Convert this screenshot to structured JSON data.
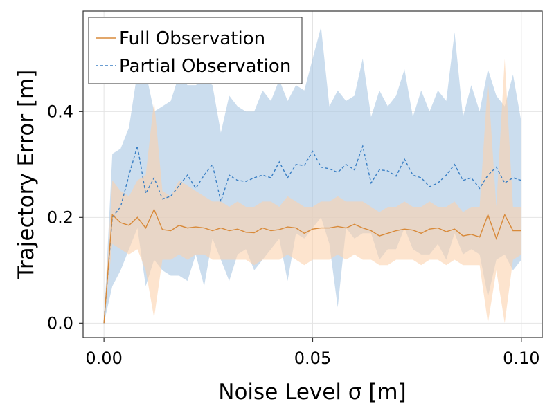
{
  "chart_data": {
    "type": "line",
    "xlabel": "Noise Level σ [m]",
    "ylabel": "Trajectory Error [m]",
    "xlim": [
      -0.005,
      0.105
    ],
    "ylim": [
      -0.027,
      0.59
    ],
    "grid": true,
    "legend_position": "top-left",
    "x_ticks": [
      0.0,
      0.05,
      0.1
    ],
    "x_tick_labels": [
      "0.00",
      "0.05",
      "0.10"
    ],
    "y_ticks": [
      0.0,
      0.2,
      0.4
    ],
    "y_tick_labels": [
      "0.0",
      "0.2",
      "0.4"
    ],
    "x": [
      0.0,
      0.002,
      0.004,
      0.006,
      0.008,
      0.01,
      0.012,
      0.014,
      0.016,
      0.018,
      0.02,
      0.022,
      0.024,
      0.026,
      0.028,
      0.03,
      0.032,
      0.034,
      0.036,
      0.038,
      0.04,
      0.042,
      0.044,
      0.046,
      0.048,
      0.05,
      0.052,
      0.054,
      0.056,
      0.058,
      0.06,
      0.062,
      0.064,
      0.066,
      0.068,
      0.07,
      0.072,
      0.074,
      0.076,
      0.078,
      0.08,
      0.082,
      0.084,
      0.086,
      0.088,
      0.09,
      0.092,
      0.094,
      0.096,
      0.098,
      0.1
    ],
    "series": [
      {
        "name": "Partial Observation",
        "color": "#3a7fc4",
        "band_color": "#a8c6e2",
        "line_style": "dashed",
        "mean": [
          0.0,
          0.2,
          0.22,
          0.28,
          0.335,
          0.245,
          0.275,
          0.235,
          0.24,
          0.26,
          0.28,
          0.255,
          0.28,
          0.3,
          0.23,
          0.28,
          0.27,
          0.268,
          0.275,
          0.28,
          0.275,
          0.305,
          0.275,
          0.3,
          0.298,
          0.325,
          0.295,
          0.292,
          0.285,
          0.3,
          0.29,
          0.335,
          0.265,
          0.29,
          0.288,
          0.278,
          0.31,
          0.28,
          0.275,
          0.258,
          0.265,
          0.28,
          0.3,
          0.27,
          0.275,
          0.255,
          0.28,
          0.295,
          0.265,
          0.275,
          0.27
        ],
        "upper": [
          0.0,
          0.32,
          0.33,
          0.37,
          0.475,
          0.475,
          0.4,
          0.41,
          0.42,
          0.47,
          0.45,
          0.45,
          0.46,
          0.45,
          0.36,
          0.43,
          0.41,
          0.4,
          0.4,
          0.44,
          0.42,
          0.46,
          0.42,
          0.45,
          0.44,
          0.5,
          0.56,
          0.41,
          0.44,
          0.42,
          0.43,
          0.5,
          0.39,
          0.44,
          0.41,
          0.43,
          0.48,
          0.39,
          0.44,
          0.4,
          0.44,
          0.42,
          0.55,
          0.39,
          0.45,
          0.4,
          0.48,
          0.43,
          0.41,
          0.47,
          0.38
        ],
        "lower": [
          0.0,
          0.07,
          0.1,
          0.14,
          0.18,
          0.07,
          0.12,
          0.1,
          0.09,
          0.09,
          0.08,
          0.13,
          0.07,
          0.16,
          0.12,
          0.08,
          0.13,
          0.14,
          0.1,
          0.12,
          0.14,
          0.16,
          0.08,
          0.17,
          0.16,
          0.18,
          0.2,
          0.15,
          0.03,
          0.18,
          0.16,
          0.17,
          0.17,
          0.12,
          0.14,
          0.14,
          0.18,
          0.14,
          0.13,
          0.13,
          0.15,
          0.12,
          0.17,
          0.13,
          0.14,
          0.13,
          0.05,
          0.12,
          0.13,
          0.1,
          0.12
        ]
      },
      {
        "name": "Full Observation",
        "color": "#d88a3a",
        "band_color": "#fbd2ad",
        "line_style": "solid",
        "mean": [
          0.0,
          0.205,
          0.19,
          0.185,
          0.2,
          0.18,
          0.215,
          0.177,
          0.175,
          0.185,
          0.18,
          0.182,
          0.18,
          0.175,
          0.18,
          0.175,
          0.178,
          0.172,
          0.171,
          0.18,
          0.175,
          0.177,
          0.182,
          0.18,
          0.17,
          0.178,
          0.18,
          0.18,
          0.183,
          0.18,
          0.187,
          0.18,
          0.175,
          0.165,
          0.17,
          0.175,
          0.178,
          0.176,
          0.17,
          0.178,
          0.18,
          0.173,
          0.178,
          0.165,
          0.168,
          0.163,
          0.205,
          0.16,
          0.205,
          0.175,
          0.175
        ],
        "upper": [
          0.0,
          0.27,
          0.25,
          0.24,
          0.27,
          0.28,
          0.42,
          0.25,
          0.24,
          0.27,
          0.26,
          0.25,
          0.24,
          0.23,
          0.23,
          0.22,
          0.23,
          0.22,
          0.22,
          0.23,
          0.23,
          0.22,
          0.24,
          0.23,
          0.22,
          0.22,
          0.23,
          0.23,
          0.24,
          0.23,
          0.23,
          0.23,
          0.22,
          0.21,
          0.22,
          0.22,
          0.23,
          0.22,
          0.22,
          0.23,
          0.22,
          0.22,
          0.23,
          0.21,
          0.22,
          0.22,
          0.46,
          0.22,
          0.5,
          0.22,
          0.22
        ],
        "lower": [
          0.0,
          0.15,
          0.14,
          0.13,
          0.14,
          0.1,
          0.01,
          0.12,
          0.12,
          0.13,
          0.12,
          0.13,
          0.13,
          0.12,
          0.12,
          0.12,
          0.12,
          0.12,
          0.11,
          0.12,
          0.12,
          0.12,
          0.13,
          0.12,
          0.11,
          0.12,
          0.12,
          0.12,
          0.13,
          0.12,
          0.13,
          0.12,
          0.12,
          0.11,
          0.11,
          0.12,
          0.12,
          0.12,
          0.11,
          0.12,
          0.12,
          0.11,
          0.12,
          0.11,
          0.11,
          0.11,
          0.0,
          0.1,
          0.0,
          0.12,
          0.13
        ]
      }
    ],
    "legend": [
      {
        "label": "Full Observation",
        "color": "#d88a3a",
        "line_style": "solid"
      },
      {
        "label": "Partial Observation",
        "color": "#3a7fc4",
        "line_style": "dashed"
      }
    ]
  }
}
